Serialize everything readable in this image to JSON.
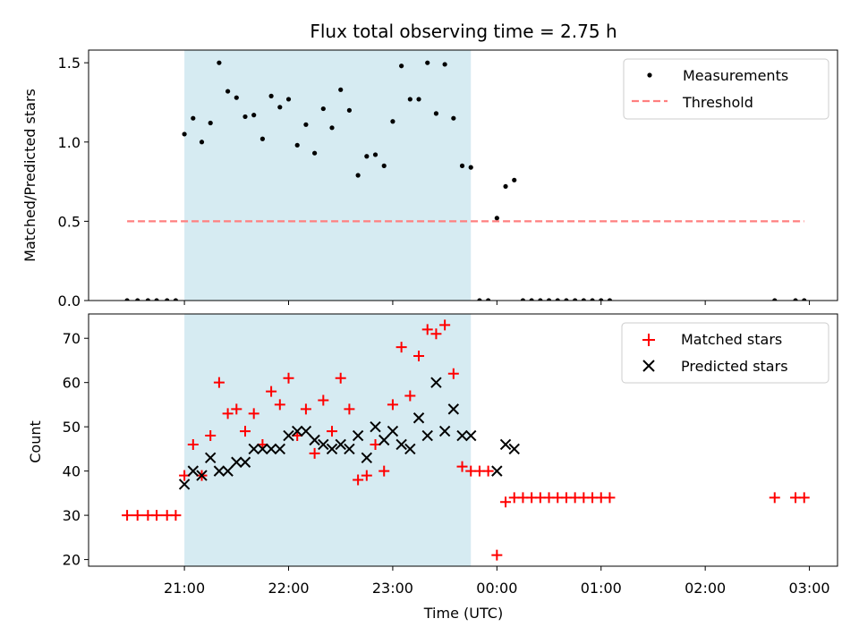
{
  "chart_data": [
    {
      "type": "scatter",
      "title": "Flux total observing time = 2.75 h",
      "ylabel": "Matched/Predicted stars",
      "xlabel": "",
      "ylim": [
        0,
        1.58
      ],
      "xlim_hours_from_2100": [
        -0.92,
        6.27
      ],
      "yticks": [
        "0.0",
        "0.5",
        "1.0",
        "1.5"
      ],
      "shaded_interval": {
        "start": "21:00",
        "end": "23:45",
        "color": "#add8e6"
      },
      "legend": {
        "location": "top-right",
        "entries": [
          "Measurements",
          "Threshold"
        ]
      },
      "series": [
        {
          "name": "Measurements",
          "color": "#000000",
          "marker": "dot",
          "points": [
            [
              "20:27",
              0.0
            ],
            [
              "20:33",
              0.0
            ],
            [
              "20:39",
              0.0
            ],
            [
              "20:44",
              0.0
            ],
            [
              "20:50",
              0.0
            ],
            [
              "20:55",
              0.0
            ],
            [
              "21:00",
              1.05
            ],
            [
              "21:05",
              1.15
            ],
            [
              "21:10",
              1.0
            ],
            [
              "21:15",
              1.12
            ],
            [
              "21:20",
              1.5
            ],
            [
              "21:25",
              1.32
            ],
            [
              "21:30",
              1.28
            ],
            [
              "21:35",
              1.16
            ],
            [
              "21:40",
              1.17
            ],
            [
              "21:45",
              1.02
            ],
            [
              "21:50",
              1.29
            ],
            [
              "21:55",
              1.22
            ],
            [
              "22:00",
              1.27
            ],
            [
              "22:05",
              0.98
            ],
            [
              "22:10",
              1.11
            ],
            [
              "22:15",
              0.93
            ],
            [
              "22:20",
              1.21
            ],
            [
              "22:25",
              1.09
            ],
            [
              "22:30",
              1.33
            ],
            [
              "22:35",
              1.2
            ],
            [
              "22:40",
              0.79
            ],
            [
              "22:45",
              0.91
            ],
            [
              "22:50",
              0.92
            ],
            [
              "22:55",
              0.85
            ],
            [
              "23:00",
              1.13
            ],
            [
              "23:05",
              1.48
            ],
            [
              "23:10",
              1.27
            ],
            [
              "23:15",
              1.27
            ],
            [
              "23:20",
              1.5
            ],
            [
              "23:25",
              1.18
            ],
            [
              "23:30",
              1.49
            ],
            [
              "23:35",
              1.15
            ],
            [
              "23:40",
              0.85
            ],
            [
              "23:45",
              0.84
            ],
            [
              "23:50",
              0.0
            ],
            [
              "23:55",
              0.0
            ],
            [
              "00:00",
              0.52
            ],
            [
              "00:05",
              0.72
            ],
            [
              "00:10",
              0.76
            ],
            [
              "00:15",
              0.0
            ],
            [
              "00:20",
              0.0
            ],
            [
              "00:25",
              0.0
            ],
            [
              "00:30",
              0.0
            ],
            [
              "00:35",
              0.0
            ],
            [
              "00:40",
              0.0
            ],
            [
              "00:45",
              0.0
            ],
            [
              "00:50",
              0.0
            ],
            [
              "00:55",
              0.0
            ],
            [
              "01:00",
              0.0
            ],
            [
              "01:05",
              0.0
            ],
            [
              "02:40",
              0.0
            ],
            [
              "02:52",
              0.0
            ],
            [
              "02:57",
              0.0
            ]
          ]
        },
        {
          "name": "Threshold",
          "color": "#ff7f7f",
          "line": "dashed",
          "value": 0.5,
          "x_range": [
            "20:27",
            "02:57"
          ]
        }
      ]
    },
    {
      "type": "scatter",
      "title": "",
      "ylabel": "Count",
      "xlabel": "Time (UTC)",
      "ylim": [
        18.5,
        75.5
      ],
      "xlim_hours_from_2100": [
        -0.92,
        6.27
      ],
      "yticks": [
        "20",
        "30",
        "40",
        "50",
        "60",
        "70"
      ],
      "xticks": [
        "21:00",
        "22:00",
        "23:00",
        "00:00",
        "01:00",
        "02:00",
        "03:00"
      ],
      "shaded_interval": {
        "start": "21:00",
        "end": "23:45",
        "color": "#add8e6"
      },
      "legend": {
        "location": "top-right",
        "entries": [
          "Matched stars",
          "Predicted stars"
        ]
      },
      "series": [
        {
          "name": "Matched stars",
          "color": "#ff0000",
          "marker": "plus",
          "points": [
            [
              "20:27",
              30
            ],
            [
              "20:33",
              30
            ],
            [
              "20:39",
              30
            ],
            [
              "20:44",
              30
            ],
            [
              "20:50",
              30
            ],
            [
              "20:55",
              30
            ],
            [
              "21:00",
              39
            ],
            [
              "21:05",
              46
            ],
            [
              "21:10",
              39
            ],
            [
              "21:15",
              48
            ],
            [
              "21:20",
              60
            ],
            [
              "21:25",
              53
            ],
            [
              "21:30",
              54
            ],
            [
              "21:35",
              49
            ],
            [
              "21:40",
              53
            ],
            [
              "21:45",
              46
            ],
            [
              "21:50",
              58
            ],
            [
              "21:55",
              55
            ],
            [
              "22:00",
              61
            ],
            [
              "22:05",
              48
            ],
            [
              "22:10",
              54
            ],
            [
              "22:15",
              44
            ],
            [
              "22:20",
              56
            ],
            [
              "22:25",
              49
            ],
            [
              "22:30",
              61
            ],
            [
              "22:35",
              54
            ],
            [
              "22:40",
              38
            ],
            [
              "22:45",
              39
            ],
            [
              "22:50",
              46
            ],
            [
              "22:55",
              40
            ],
            [
              "23:00",
              55
            ],
            [
              "23:05",
              68
            ],
            [
              "23:10",
              57
            ],
            [
              "23:15",
              66
            ],
            [
              "23:20",
              72
            ],
            [
              "23:25",
              71
            ],
            [
              "23:30",
              73
            ],
            [
              "23:35",
              62
            ],
            [
              "23:40",
              41
            ],
            [
              "23:45",
              40
            ],
            [
              "23:50",
              40
            ],
            [
              "23:55",
              40
            ],
            [
              "00:00",
              21
            ],
            [
              "00:05",
              33
            ],
            [
              "00:10",
              34
            ],
            [
              "00:15",
              34
            ],
            [
              "00:20",
              34
            ],
            [
              "00:25",
              34
            ],
            [
              "00:30",
              34
            ],
            [
              "00:35",
              34
            ],
            [
              "00:40",
              34
            ],
            [
              "00:45",
              34
            ],
            [
              "00:50",
              34
            ],
            [
              "00:55",
              34
            ],
            [
              "01:00",
              34
            ],
            [
              "01:05",
              34
            ],
            [
              "02:40",
              34
            ],
            [
              "02:52",
              34
            ],
            [
              "02:57",
              34
            ]
          ]
        },
        {
          "name": "Predicted stars",
          "color": "#000000",
          "marker": "x",
          "points": [
            [
              "21:00",
              37
            ],
            [
              "21:05",
              40
            ],
            [
              "21:10",
              39
            ],
            [
              "21:15",
              43
            ],
            [
              "21:20",
              40
            ],
            [
              "21:25",
              40
            ],
            [
              "21:30",
              42
            ],
            [
              "21:35",
              42
            ],
            [
              "21:40",
              45
            ],
            [
              "21:45",
              45
            ],
            [
              "21:50",
              45
            ],
            [
              "21:55",
              45
            ],
            [
              "22:00",
              48
            ],
            [
              "22:05",
              49
            ],
            [
              "22:10",
              49
            ],
            [
              "22:15",
              47
            ],
            [
              "22:20",
              46
            ],
            [
              "22:25",
              45
            ],
            [
              "22:30",
              46
            ],
            [
              "22:35",
              45
            ],
            [
              "22:40",
              48
            ],
            [
              "22:45",
              43
            ],
            [
              "22:50",
              50
            ],
            [
              "22:55",
              47
            ],
            [
              "23:00",
              49
            ],
            [
              "23:05",
              46
            ],
            [
              "23:10",
              45
            ],
            [
              "23:15",
              52
            ],
            [
              "23:20",
              48
            ],
            [
              "23:25",
              60
            ],
            [
              "23:30",
              49
            ],
            [
              "23:35",
              54
            ],
            [
              "23:40",
              48
            ],
            [
              "23:45",
              48
            ],
            [
              "00:00",
              40
            ],
            [
              "00:05",
              46
            ],
            [
              "00:10",
              45
            ]
          ]
        }
      ]
    }
  ]
}
